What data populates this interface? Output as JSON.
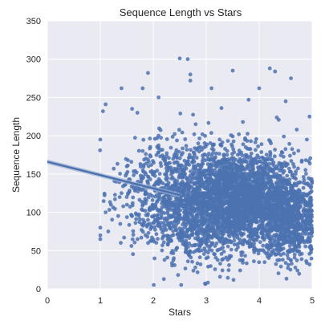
{
  "chart_data": {
    "type": "scatter",
    "title": "Sequence Length vs Stars",
    "xlabel": "Stars",
    "ylabel": "Sequence Length",
    "xlim": [
      0,
      5
    ],
    "ylim": [
      0,
      350
    ],
    "xticks": [
      "0",
      "1",
      "2",
      "3",
      "4",
      "5"
    ],
    "yticks": [
      "0",
      "50",
      "100",
      "150",
      "200",
      "250",
      "300",
      "350"
    ],
    "grid": true,
    "legend": "none",
    "colors": {
      "background": "#eaeaf2",
      "grid": "#ffffff",
      "point": "#4c72b0",
      "fit": "#4c72b0",
      "band": "#9fb3d6"
    },
    "regression": {
      "intercept": 166,
      "slope": -17.4,
      "x_range": [
        0,
        2.5
      ],
      "ci_halfwidth": 3
    },
    "series": [
      {
        "values": [
          {
            "x": 1.0,
            "y": 195
          },
          {
            "x": 1.1,
            "y": 241
          },
          {
            "x": 1.05,
            "y": 232
          },
          {
            "x": 1.4,
            "y": 262
          },
          {
            "x": 1.9,
            "y": 282
          },
          {
            "x": 1.8,
            "y": 262
          },
          {
            "x": 1.7,
            "y": 230
          },
          {
            "x": 1.6,
            "y": 235
          },
          {
            "x": 2.5,
            "y": 301
          },
          {
            "x": 2.65,
            "y": 300
          },
          {
            "x": 2.7,
            "y": 280
          },
          {
            "x": 2.7,
            "y": 272
          },
          {
            "x": 2.1,
            "y": 250
          },
          {
            "x": 3.1,
            "y": 262
          },
          {
            "x": 3.5,
            "y": 285
          },
          {
            "x": 4.2,
            "y": 288
          },
          {
            "x": 4.3,
            "y": 284
          },
          {
            "x": 4.6,
            "y": 275
          },
          {
            "x": 4.0,
            "y": 262
          },
          {
            "x": 3.8,
            "y": 247
          },
          {
            "x": 1.0,
            "y": 80
          },
          {
            "x": 1.0,
            "y": 70
          },
          {
            "x": 1.0,
            "y": 65
          },
          {
            "x": 1.15,
            "y": 75
          },
          {
            "x": 1.45,
            "y": 67
          },
          {
            "x": 1.1,
            "y": 100
          },
          {
            "x": 1.2,
            "y": 110
          },
          {
            "x": 1.3,
            "y": 140
          },
          {
            "x": 1.4,
            "y": 125
          },
          {
            "x": 1.5,
            "y": 160
          },
          {
            "x": 1.5,
            "y": 120
          },
          {
            "x": 1.6,
            "y": 95
          },
          {
            "x": 1.7,
            "y": 135
          },
          {
            "x": 1.8,
            "y": 180
          },
          {
            "x": 1.9,
            "y": 90
          },
          {
            "x": 2.0,
            "y": 150
          },
          {
            "x": 2.1,
            "y": 200
          },
          {
            "x": 2.2,
            "y": 120
          },
          {
            "x": 2.3,
            "y": 85
          },
          {
            "x": 2.4,
            "y": 175
          },
          {
            "x": 3.0,
            "y": 40
          },
          {
            "x": 3.3,
            "y": 38
          },
          {
            "x": 3.9,
            "y": 36
          },
          {
            "x": 4.5,
            "y": 34
          },
          {
            "x": 4.95,
            "y": 32
          },
          {
            "x": 4.95,
            "y": 225
          },
          {
            "x": 4.9,
            "y": 195
          },
          {
            "x": 4.5,
            "y": 245
          },
          {
            "x": 2.8,
            "y": 215
          },
          {
            "x": 2.9,
            "y": 60
          }
        ]
      }
    ],
    "dense_clusters": [
      {
        "cx": 3.6,
        "cy": 115,
        "sx": 0.55,
        "sy": 32,
        "n": 2600
      },
      {
        "cx": 4.6,
        "cy": 90,
        "sx": 0.25,
        "sy": 28,
        "n": 700
      },
      {
        "cx": 2.6,
        "cy": 110,
        "sx": 0.45,
        "sy": 38,
        "n": 700
      },
      {
        "cx": 1.9,
        "cy": 125,
        "sx": 0.35,
        "sy": 35,
        "n": 200
      }
    ]
  }
}
